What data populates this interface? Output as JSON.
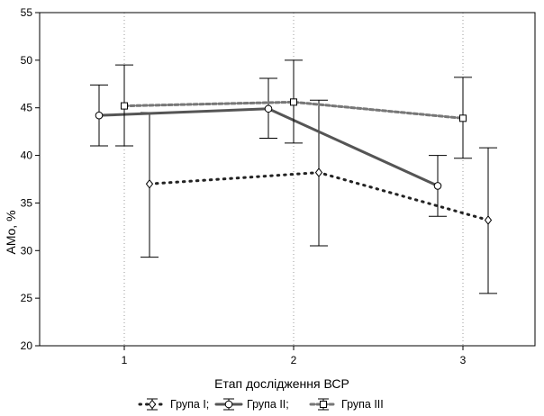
{
  "chart_data": {
    "type": "line",
    "xlabel": "Етап дослідження ВСР",
    "ylabel": "AMo, %",
    "x_categories": [
      "1",
      "2",
      "3"
    ],
    "ylim": [
      20,
      55
    ],
    "yticks": [
      20,
      25,
      30,
      35,
      40,
      45,
      50,
      55
    ],
    "grid": "vertical dotted at x categories",
    "legend_position": "bottom",
    "series": [
      {
        "name": "Група I;",
        "line_style": "dotted",
        "line_color": "#222222",
        "marker": "diamond",
        "values": [
          37.0,
          38.2,
          33.2
        ],
        "ci_lower": [
          29.3,
          30.5,
          25.5
        ],
        "ci_upper": [
          44.5,
          45.8,
          40.8
        ]
      },
      {
        "name": "Група II;",
        "line_style": "solid",
        "line_color": "#555555",
        "marker": "circle",
        "values": [
          44.2,
          44.9,
          36.8
        ],
        "ci_lower": [
          41.0,
          41.8,
          33.6
        ],
        "ci_upper": [
          47.4,
          48.1,
          40.0
        ]
      },
      {
        "name": "Група III",
        "line_style": "dashed",
        "line_color": "#777777",
        "marker": "square",
        "values": [
          45.2,
          45.6,
          43.9
        ],
        "ci_lower": [
          41.0,
          41.3,
          39.7
        ],
        "ci_upper": [
          49.5,
          50.0,
          48.2
        ]
      }
    ]
  }
}
